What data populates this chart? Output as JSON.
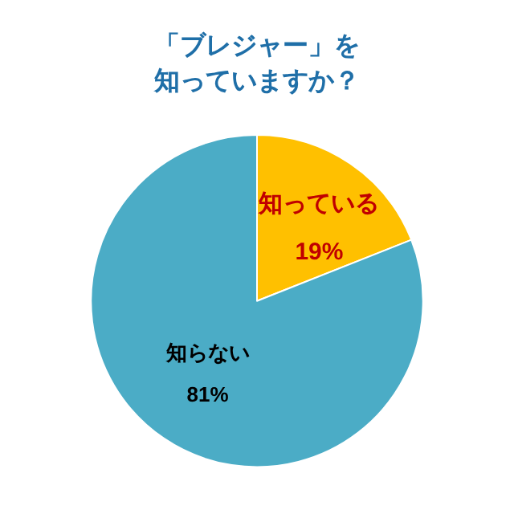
{
  "chart_data": {
    "type": "pie",
    "title": "「ブレジャー」を知っていますか？",
    "categories": [
      "知っている",
      "知らない"
    ],
    "values": [
      19,
      81
    ],
    "colors": [
      "#ffc000",
      "#4bacc6"
    ],
    "value_labels": [
      "19%",
      "81%"
    ],
    "legend": false
  }
}
